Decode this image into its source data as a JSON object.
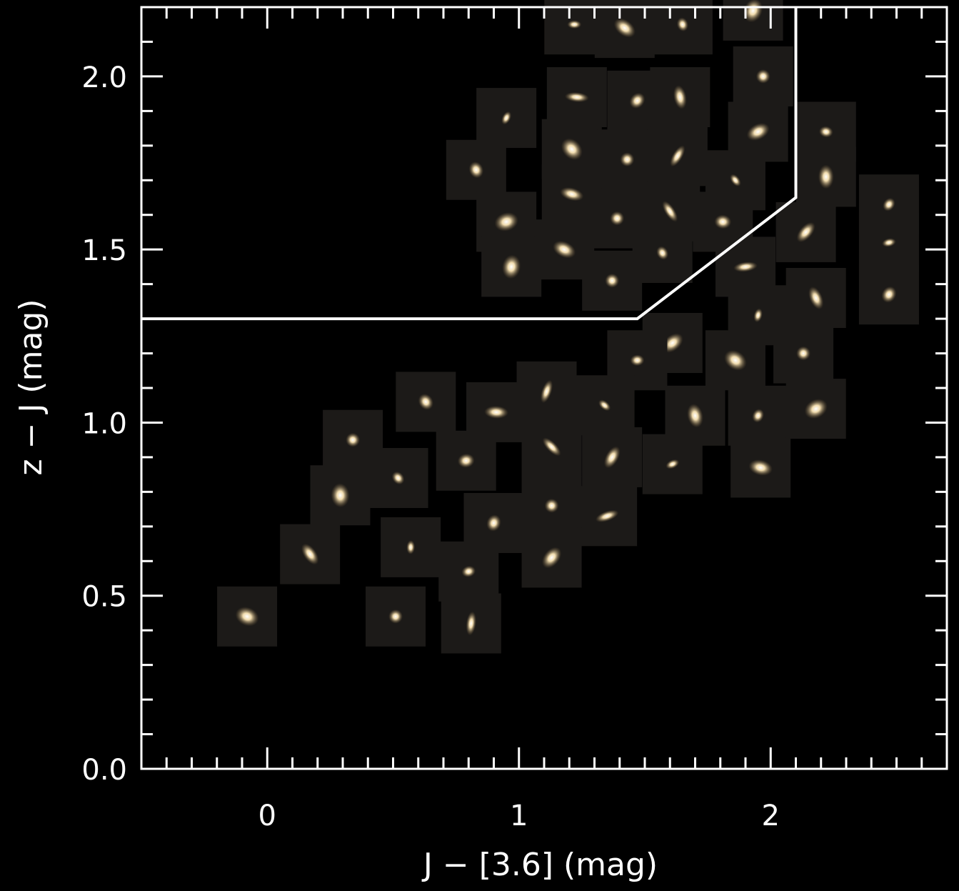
{
  "chart_data": {
    "type": "scatter",
    "title": "",
    "xlabel": "J − [3.6] (mag)",
    "ylabel": "z − J (mag)",
    "xlim": [
      -0.5,
      2.7
    ],
    "ylim": [
      0.0,
      2.2
    ],
    "x_ticks": [
      {
        "value": 0,
        "label": "0"
      },
      {
        "value": 1,
        "label": "1"
      },
      {
        "value": 2,
        "label": "2"
      }
    ],
    "y_ticks": [
      {
        "value": 0.0,
        "label": "0.0"
      },
      {
        "value": 0.5,
        "label": "0.5"
      },
      {
        "value": 1.0,
        "label": "1.0"
      },
      {
        "value": 1.5,
        "label": "1.5"
      },
      {
        "value": 2.0,
        "label": "2.0"
      }
    ],
    "x_minor_step": 0.1,
    "y_minor_step": 0.1,
    "selection_boundary": [
      {
        "x": -0.5,
        "y": 1.3
      },
      {
        "x": 1.47,
        "y": 1.3
      },
      {
        "x": 2.1,
        "y": 1.65
      },
      {
        "x": 2.1,
        "y": 2.2
      }
    ],
    "points": [
      {
        "x": 1.22,
        "y": 2.15
      },
      {
        "x": 1.42,
        "y": 2.14
      },
      {
        "x": 1.65,
        "y": 2.15
      },
      {
        "x": 1.93,
        "y": 2.19
      },
      {
        "x": 1.97,
        "y": 2.0
      },
      {
        "x": 1.23,
        "y": 1.94
      },
      {
        "x": 1.47,
        "y": 1.93
      },
      {
        "x": 1.64,
        "y": 1.94
      },
      {
        "x": 0.95,
        "y": 1.88
      },
      {
        "x": 1.95,
        "y": 1.84
      },
      {
        "x": 2.22,
        "y": 1.84
      },
      {
        "x": 1.21,
        "y": 1.79
      },
      {
        "x": 1.43,
        "y": 1.76
      },
      {
        "x": 1.63,
        "y": 1.77
      },
      {
        "x": 0.83,
        "y": 1.73
      },
      {
        "x": 1.21,
        "y": 1.66
      },
      {
        "x": 1.86,
        "y": 1.7
      },
      {
        "x": 2.22,
        "y": 1.71
      },
      {
        "x": 2.47,
        "y": 1.63
      },
      {
        "x": 0.95,
        "y": 1.58
      },
      {
        "x": 1.39,
        "y": 1.59
      },
      {
        "x": 1.6,
        "y": 1.61
      },
      {
        "x": 1.81,
        "y": 1.58
      },
      {
        "x": 2.14,
        "y": 1.55
      },
      {
        "x": 2.47,
        "y": 1.52
      },
      {
        "x": 1.18,
        "y": 1.5
      },
      {
        "x": 1.57,
        "y": 1.49
      },
      {
        "x": 0.97,
        "y": 1.45
      },
      {
        "x": 1.37,
        "y": 1.41
      },
      {
        "x": 1.9,
        "y": 1.45
      },
      {
        "x": 2.47,
        "y": 1.37
      },
      {
        "x": 2.18,
        "y": 1.36
      },
      {
        "x": 1.95,
        "y": 1.31
      },
      {
        "x": 1.61,
        "y": 1.23
      },
      {
        "x": 1.47,
        "y": 1.18
      },
      {
        "x": 1.86,
        "y": 1.18
      },
      {
        "x": 2.13,
        "y": 1.2
      },
      {
        "x": 1.11,
        "y": 1.09
      },
      {
        "x": 0.63,
        "y": 1.06
      },
      {
        "x": 0.91,
        "y": 1.03
      },
      {
        "x": 1.34,
        "y": 1.05
      },
      {
        "x": 1.7,
        "y": 1.02
      },
      {
        "x": 1.95,
        "y": 1.02
      },
      {
        "x": 2.18,
        "y": 1.04
      },
      {
        "x": 0.34,
        "y": 0.95
      },
      {
        "x": 1.13,
        "y": 0.93
      },
      {
        "x": 0.79,
        "y": 0.89
      },
      {
        "x": 1.37,
        "y": 0.9
      },
      {
        "x": 1.61,
        "y": 0.88
      },
      {
        "x": 1.96,
        "y": 0.87
      },
      {
        "x": 0.52,
        "y": 0.84
      },
      {
        "x": 0.29,
        "y": 0.79
      },
      {
        "x": 1.13,
        "y": 0.76
      },
      {
        "x": 1.35,
        "y": 0.73
      },
      {
        "x": 0.9,
        "y": 0.71
      },
      {
        "x": 0.17,
        "y": 0.62
      },
      {
        "x": 0.57,
        "y": 0.64
      },
      {
        "x": 1.13,
        "y": 0.61
      },
      {
        "x": 0.8,
        "y": 0.57
      },
      {
        "x": -0.08,
        "y": 0.44
      },
      {
        "x": 0.51,
        "y": 0.44
      },
      {
        "x": 0.81,
        "y": 0.42
      }
    ],
    "grid": false,
    "legend": "none"
  }
}
